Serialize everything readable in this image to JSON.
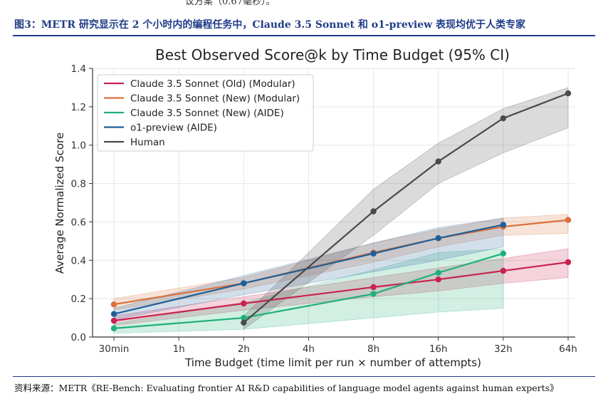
{
  "header": {
    "top_fragment": "议方案（0.67毫秒）。",
    "figure_title": "图3：METR 研究显示在 2 个小时内的编程任务中，Claude 3.5 Sonnet 和 o1-preview 表现均优于人类专家"
  },
  "footer": {
    "source": "资料来源：METR《RE-Bench: Evaluating frontier AI R&D capabilities of language model agents against human experts》"
  },
  "chart_data": {
    "type": "line",
    "title": "Best Observed Score@k by Time Budget (95% CI)",
    "xlabel": "Time Budget (time limit per run × number of attempts)",
    "ylabel": "Average Normalized Score",
    "categories": [
      "30min",
      "1h",
      "2h",
      "4h",
      "8h",
      "16h",
      "32h",
      "64h"
    ],
    "ylim": [
      0,
      1.4
    ],
    "yticks": [
      "0.0",
      "0.2",
      "0.4",
      "0.6",
      "0.8",
      "1.0",
      "1.2",
      "1.4"
    ],
    "grid": true,
    "legend_position": "top-left",
    "series": [
      {
        "name": "Claude 3.5 Sonnet (Old) (Modular)",
        "color": "#c8234e",
        "x": [
          0,
          2,
          4,
          5,
          6,
          7
        ],
        "values": [
          0.085,
          0.175,
          0.26,
          0.3,
          0.345,
          0.39
        ],
        "ci_low": [
          0.06,
          0.14,
          0.21,
          0.24,
          0.28,
          0.31
        ],
        "ci_high": [
          0.11,
          0.21,
          0.31,
          0.36,
          0.41,
          0.46
        ]
      },
      {
        "name": "Claude 3.5 Sonnet (New) (Modular)",
        "color": "#d9713b",
        "x": [
          0,
          2,
          4,
          5,
          6,
          7
        ],
        "values": [
          0.17,
          0.28,
          0.44,
          0.515,
          0.575,
          0.61
        ],
        "ci_low": [
          0.14,
          0.25,
          0.39,
          0.47,
          0.53,
          0.54
        ],
        "ci_high": [
          0.2,
          0.31,
          0.49,
          0.56,
          0.62,
          0.64
        ]
      },
      {
        "name": "Claude 3.5 Sonnet (New) (AIDE)",
        "color": "#1fb07a",
        "x": [
          0,
          2,
          4,
          5,
          6
        ],
        "values": [
          0.045,
          0.1,
          0.225,
          0.335,
          0.435
        ],
        "ci_low": [
          0.02,
          0.04,
          0.1,
          0.13,
          0.15
        ],
        "ci_high": [
          0.07,
          0.18,
          0.35,
          0.44,
          0.46
        ]
      },
      {
        "name": "o1-preview (AIDE)",
        "color": "#1f5f99",
        "x": [
          0,
          2,
          4,
          5,
          6
        ],
        "values": [
          0.12,
          0.28,
          0.435,
          0.515,
          0.585
        ],
        "ci_low": [
          0.09,
          0.22,
          0.34,
          0.4,
          0.47
        ],
        "ci_high": [
          0.15,
          0.32,
          0.49,
          0.57,
          0.62
        ]
      },
      {
        "name": "Human",
        "color": "#4a4a4a",
        "x": [
          2,
          4,
          5,
          6,
          7
        ],
        "values": [
          0.075,
          0.655,
          0.915,
          1.14,
          1.27
        ],
        "ci_low": [
          0.04,
          0.53,
          0.8,
          0.96,
          1.09
        ],
        "ci_high": [
          0.11,
          0.77,
          1.01,
          1.19,
          1.3
        ]
      }
    ]
  }
}
